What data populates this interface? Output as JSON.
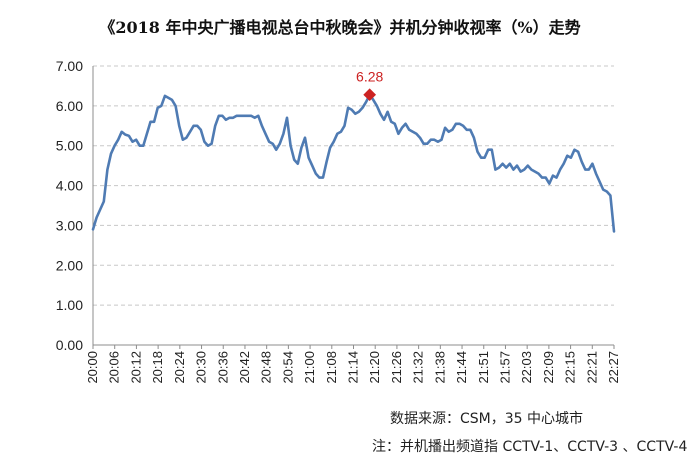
{
  "chart_data": {
    "type": "line",
    "title": "《2018 年中央广播电视总台中秋晚会》并机分钟收视率（%）走势",
    "xlabel": "",
    "ylabel": "",
    "ylim": [
      0,
      7
    ],
    "yticks": [
      "0.00",
      "1.00",
      "2.00",
      "3.00",
      "4.00",
      "5.00",
      "6.00",
      "7.00"
    ],
    "x_tick_labels": [
      "20:00",
      "20:06",
      "20:12",
      "20:18",
      "20:24",
      "20:30",
      "20:36",
      "20:42",
      "20:48",
      "20:54",
      "21:00",
      "21:08",
      "21:14",
      "21:20",
      "21:26",
      "21:32",
      "21:38",
      "21:44",
      "21:51",
      "21:57",
      "22:03",
      "22:09",
      "22:15",
      "22:21",
      "22:27"
    ],
    "grid": true,
    "legend": "none",
    "line_color": "#4f7bb3",
    "peak": {
      "label": "6.28",
      "value": 6.28,
      "color": "#cc2222",
      "index": 77
    },
    "values": [
      2.9,
      3.2,
      3.4,
      3.6,
      4.4,
      4.8,
      5.0,
      5.15,
      5.35,
      5.28,
      5.25,
      5.1,
      5.15,
      5.0,
      5.0,
      5.3,
      5.6,
      5.6,
      5.95,
      6.0,
      6.25,
      6.2,
      6.15,
      6.0,
      5.5,
      5.15,
      5.2,
      5.35,
      5.5,
      5.5,
      5.4,
      5.1,
      5.0,
      5.05,
      5.5,
      5.75,
      5.75,
      5.65,
      5.7,
      5.7,
      5.75,
      5.75,
      5.75,
      5.75,
      5.75,
      5.7,
      5.75,
      5.5,
      5.3,
      5.1,
      5.05,
      4.9,
      5.05,
      5.3,
      5.7,
      5.0,
      4.65,
      4.55,
      4.95,
      5.2,
      4.7,
      4.5,
      4.3,
      4.2,
      4.2,
      4.6,
      4.95,
      5.1,
      5.3,
      5.35,
      5.5,
      5.95,
      5.9,
      5.8,
      5.85,
      5.95,
      6.1,
      6.28,
      6.15,
      6.0,
      5.8,
      5.65,
      5.85,
      5.6,
      5.55,
      5.3,
      5.45,
      5.55,
      5.4,
      5.35,
      5.3,
      5.2,
      5.05,
      5.05,
      5.15,
      5.15,
      5.1,
      5.15,
      5.45,
      5.35,
      5.4,
      5.55,
      5.55,
      5.5,
      5.4,
      5.4,
      5.2,
      4.85,
      4.7,
      4.7,
      4.9,
      4.9,
      4.4,
      4.45,
      4.55,
      4.45,
      4.55,
      4.4,
      4.5,
      4.35,
      4.4,
      4.5,
      4.4,
      4.35,
      4.3,
      4.2,
      4.2,
      4.05,
      4.25,
      4.2,
      4.4,
      4.55,
      4.75,
      4.7,
      4.9,
      4.85,
      4.6,
      4.4,
      4.4,
      4.55,
      4.3,
      4.1,
      3.9,
      3.85,
      3.75,
      2.85
    ]
  },
  "notes": {
    "source": "数据来源：CSM，35 中心城市",
    "channels": "注：并机播出频道指 CCTV-1、CCTV-3 、CCTV-4"
  }
}
